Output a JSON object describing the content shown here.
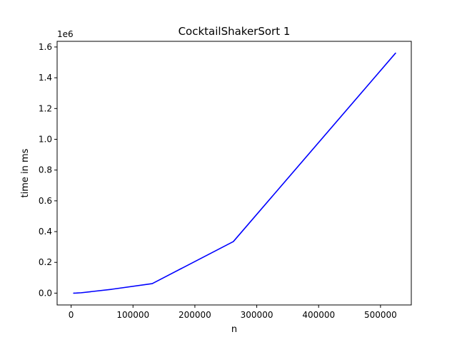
{
  "chart_data": {
    "type": "line",
    "title": "CocktailShakerSort 1",
    "xlabel": "n",
    "ylabel": "time in ms",
    "y_offset_label": "1e6",
    "xlim": [
      -22640,
      549768
    ],
    "ylim": [
      -76800,
      1636800
    ],
    "x_ticks": [
      0,
      100000,
      200000,
      300000,
      400000,
      500000
    ],
    "x_tick_labels": [
      "0",
      "100000",
      "200000",
      "300000",
      "400000",
      "500000"
    ],
    "y_ticks": [
      0,
      200000,
      400000,
      600000,
      800000,
      1000000,
      1200000,
      1400000,
      1600000
    ],
    "y_tick_labels": [
      "0.0",
      "0.2",
      "0.4",
      "0.6",
      "0.8",
      "1.0",
      "1.2",
      "1.4",
      "1.6"
    ],
    "grid": false,
    "series": [
      {
        "color": "#0000ff",
        "x": [
          4096,
          8192,
          16384,
          32768,
          65536,
          131072,
          262144,
          524288
        ],
        "y": [
          0,
          500,
          2500,
          10000,
          25000,
          62000,
          335000,
          1560000
        ]
      }
    ]
  }
}
